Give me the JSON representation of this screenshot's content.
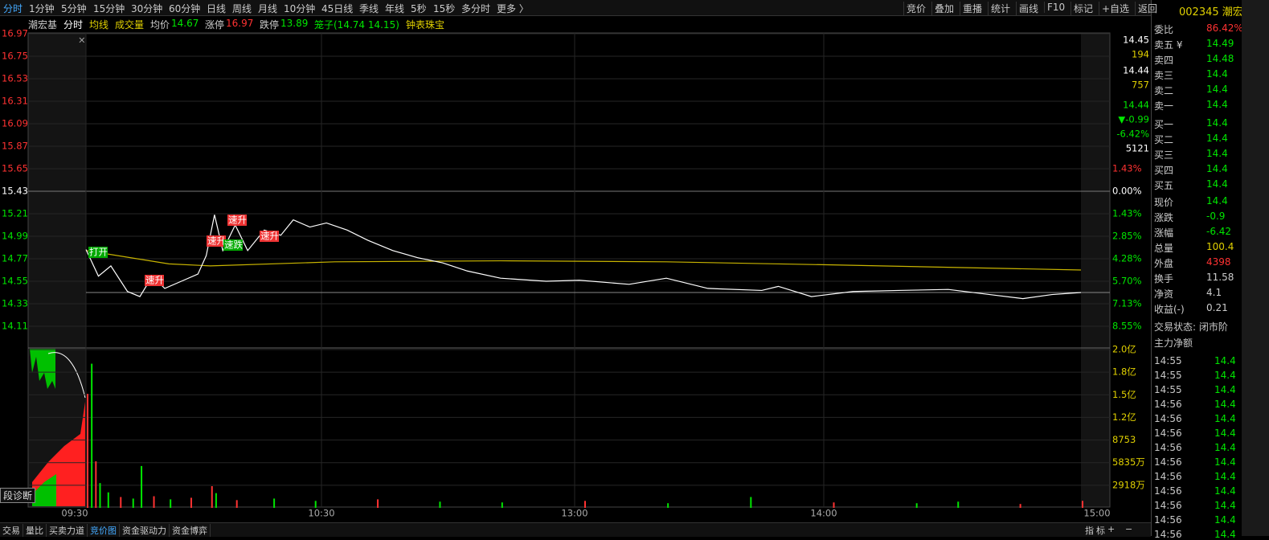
{
  "toolbar": {
    "left": [
      "分时",
      "1分钟",
      "5分钟",
      "15分钟",
      "30分钟",
      "60分钟",
      "日线",
      "周线",
      "月线",
      "10分钟",
      "45日线",
      "季线",
      "年线",
      "5秒",
      "15秒",
      "多分时",
      "更多 〉"
    ],
    "right": [
      "竞价",
      "叠加",
      "重播",
      "统计",
      "画线",
      "F10",
      "标记",
      "+自选",
      "返回"
    ]
  },
  "info_bar": {
    "stock": "潮宏基",
    "period": "分时",
    "ma": "均线",
    "vol": "成交量",
    "avg_label": "均价",
    "avg": 14.67,
    "limit_up_label": "涨停",
    "limit_up": 16.97,
    "limit_down_label": "跌停",
    "limit_down": 13.89,
    "cage": "笼子(14.74 14.15)",
    "sector": "钟表珠宝"
  },
  "chart_data": {
    "type": "line",
    "yticks": [
      16.97,
      16.75,
      16.53,
      16.31,
      16.09,
      15.87,
      15.65,
      15.43,
      15.21,
      14.99,
      14.77,
      14.55,
      14.33,
      14.11
    ],
    "pct_labels": [
      "1.43%",
      "0.00%",
      "1.43%",
      "2.85%",
      "4.28%",
      "5.70%",
      "7.13%",
      "8.55%"
    ],
    "x": [
      0,
      3,
      6,
      10,
      13,
      16,
      19,
      23,
      27,
      29,
      31,
      33,
      36,
      39,
      43,
      47,
      50,
      54,
      58,
      63,
      68,
      74,
      80,
      86,
      92,
      100,
      111,
      119,
      131,
      140,
      150,
      163,
      167,
      175,
      185,
      196,
      208,
      218,
      226,
      233,
      240
    ],
    "series": [
      {
        "name": "价格",
        "color": "#ffffff",
        "values": [
          14.86,
          14.6,
          14.7,
          14.45,
          14.4,
          14.6,
          14.48,
          14.55,
          14.62,
          14.8,
          15.2,
          14.85,
          15.1,
          14.85,
          15.05,
          15.0,
          15.15,
          15.08,
          15.12,
          15.05,
          14.95,
          14.85,
          14.78,
          14.73,
          14.65,
          14.58,
          14.55,
          14.56,
          14.52,
          14.58,
          14.48,
          14.46,
          14.5,
          14.4,
          14.45,
          14.46,
          14.47,
          14.42,
          14.38,
          14.42,
          14.44
        ]
      }
    ],
    "avg_line": {
      "name": "均线",
      "color": "#c8b400",
      "x": [
        0,
        20,
        30,
        60,
        100,
        140,
        180,
        240
      ],
      "values": [
        14.85,
        14.72,
        14.7,
        14.74,
        14.75,
        14.74,
        14.71,
        14.66
      ]
    },
    "annotations": [
      "打开",
      "速升",
      "速升",
      "速升",
      "速跌",
      "速升"
    ],
    "times": [
      "09:30",
      "10:30",
      "13:00",
      "14:00",
      "15:00"
    ],
    "volume": {
      "yticks": [
        {
          "value": 20424,
          "label": "2.0亿"
        },
        {
          "value": 17506,
          "label": "1.8亿"
        },
        {
          "value": 14589,
          "label": "1.5亿"
        },
        {
          "value": 11671,
          "label": "1.2亿"
        },
        8753,
        {
          "value": 5835,
          "label": "5835万"
        },
        {
          "value": 2918,
          "label": "2918万"
        }
      ],
      "x": [
        0,
        1,
        2,
        3,
        5,
        8,
        11,
        13,
        16,
        20,
        25,
        30,
        31,
        36,
        45,
        55,
        70,
        85,
        100,
        120,
        140,
        160,
        180,
        200,
        210,
        225,
        240
      ],
      "values": [
        14700,
        18600,
        6000,
        3200,
        2000,
        1400,
        1200,
        5400,
        1500,
        1100,
        1300,
        2800,
        1900,
        1000,
        1200,
        900,
        1100,
        800,
        700,
        900,
        600,
        1400,
        700,
        600,
        800,
        500,
        900
      ],
      "colors": [
        "#ff3232",
        "#00e600",
        "#ff3232",
        "#00e600",
        "#00e600",
        "#ff3232",
        "#00e600",
        "#00e600",
        "#ff3232",
        "#00e600",
        "#ff3232",
        "#ff3232",
        "#00e600",
        "#ff3232",
        "#00e600",
        "#00e600",
        "#ff3232",
        "#00e600",
        "#00e600",
        "#ff3232",
        "#00e600",
        "#00e600",
        "#ff3232",
        "#00e600",
        "#00e600",
        "#ff3232",
        "#ff3232"
      ]
    }
  },
  "right_axis_quote": [
    "14.45",
    "194",
    "14.44",
    "757",
    "14.44",
    "▼-0.99",
    "-6.42%",
    "5121"
  ],
  "diag_button": "段诊断",
  "panel": {
    "code": "002345 潮宏基",
    "rows": [
      [
        "委比",
        "86.42%",
        "委"
      ],
      [
        "卖五 ¥",
        "14.49"
      ],
      [
        "卖四",
        "14.48"
      ],
      [
        "卖三",
        "14.4"
      ],
      [
        "卖二",
        "14.4"
      ],
      [
        "卖一",
        "14.4"
      ],
      [
        "买一",
        "14.4"
      ],
      [
        "买二",
        "14.4"
      ],
      [
        "买三",
        "14.4"
      ],
      [
        "买四",
        "14.4"
      ],
      [
        "买五",
        "14.4"
      ],
      [
        "现价",
        "14.4"
      ],
      [
        "涨跌",
        "-0.9"
      ],
      [
        "涨幅",
        "-6.42"
      ],
      [
        "总量",
        "100.4"
      ],
      [
        "外盘",
        "4398"
      ],
      [
        "换手",
        "11.58"
      ],
      [
        "净资",
        "4.1"
      ],
      [
        "收益(-)",
        "0.21"
      ]
    ],
    "status": "交易状态: 闭市阶",
    "main_net": "主力净额",
    "ticks": [
      [
        "14:55",
        "14.4"
      ],
      [
        "14:55",
        "14.4"
      ],
      [
        "14:55",
        "14.4"
      ],
      [
        "14:56",
        "14.4"
      ],
      [
        "14:56",
        "14.4"
      ],
      [
        "14:56",
        "14.4"
      ],
      [
        "14:56",
        "14.4"
      ],
      [
        "14:56",
        "14.4"
      ],
      [
        "14:56",
        "14.4"
      ],
      [
        "14:56",
        "14.4"
      ],
      [
        "14:56",
        "14.4"
      ],
      [
        "14:56",
        "14.4"
      ],
      [
        "14:56",
        "14.4"
      ]
    ]
  },
  "bottom_tabs": [
    "交易",
    "量比",
    "买卖力道",
    "竞价图",
    "资金驱动力",
    "资金博弈"
  ],
  "bottom_right": [
    "指",
    "标",
    "+",
    "−"
  ]
}
